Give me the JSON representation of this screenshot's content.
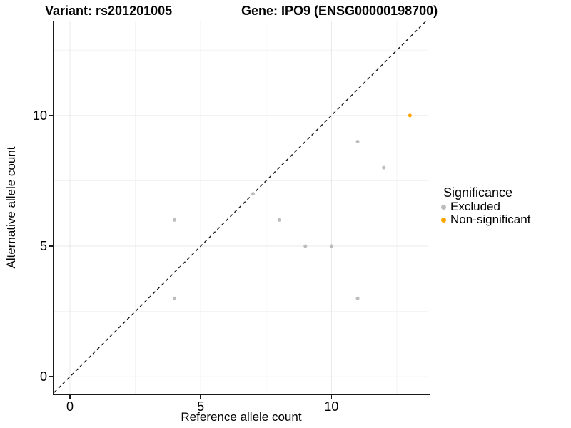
{
  "titles": {
    "left": "Variant: rs201201005",
    "right": "Gene: IPO9 (ENSG00000198700)"
  },
  "chart_data": {
    "type": "scatter",
    "xlabel": "Reference allele count",
    "ylabel": "Alternative allele count",
    "xlim": [
      -0.6,
      13.7
    ],
    "ylim": [
      -0.65,
      13.6
    ],
    "x_ticks": [
      0,
      5,
      10
    ],
    "y_ticks": [
      0,
      5,
      10
    ],
    "x_minor": [
      2.5,
      7.5,
      12.5
    ],
    "y_minor": [
      2.5,
      7.5,
      12.5
    ],
    "grid": true,
    "legend_title": "Significance",
    "legend_position": "right",
    "identity_line": {
      "style": "dashed",
      "slope": 1,
      "intercept": 0,
      "color": "#141414"
    },
    "series": [
      {
        "name": "Excluded",
        "color": "#BDBDBD",
        "points": [
          [
            4,
            3
          ],
          [
            4,
            6
          ],
          [
            7,
            7
          ],
          [
            8,
            6
          ],
          [
            9,
            5
          ],
          [
            10,
            5
          ],
          [
            11,
            3
          ],
          [
            11,
            9
          ],
          [
            12,
            8
          ]
        ]
      },
      {
        "name": "Non-significant",
        "color": "#FFA500",
        "points": [
          [
            13,
            10
          ]
        ]
      }
    ],
    "grid_major_color": "#e9e9e9",
    "grid_minor_color": "#f3f3f3"
  }
}
